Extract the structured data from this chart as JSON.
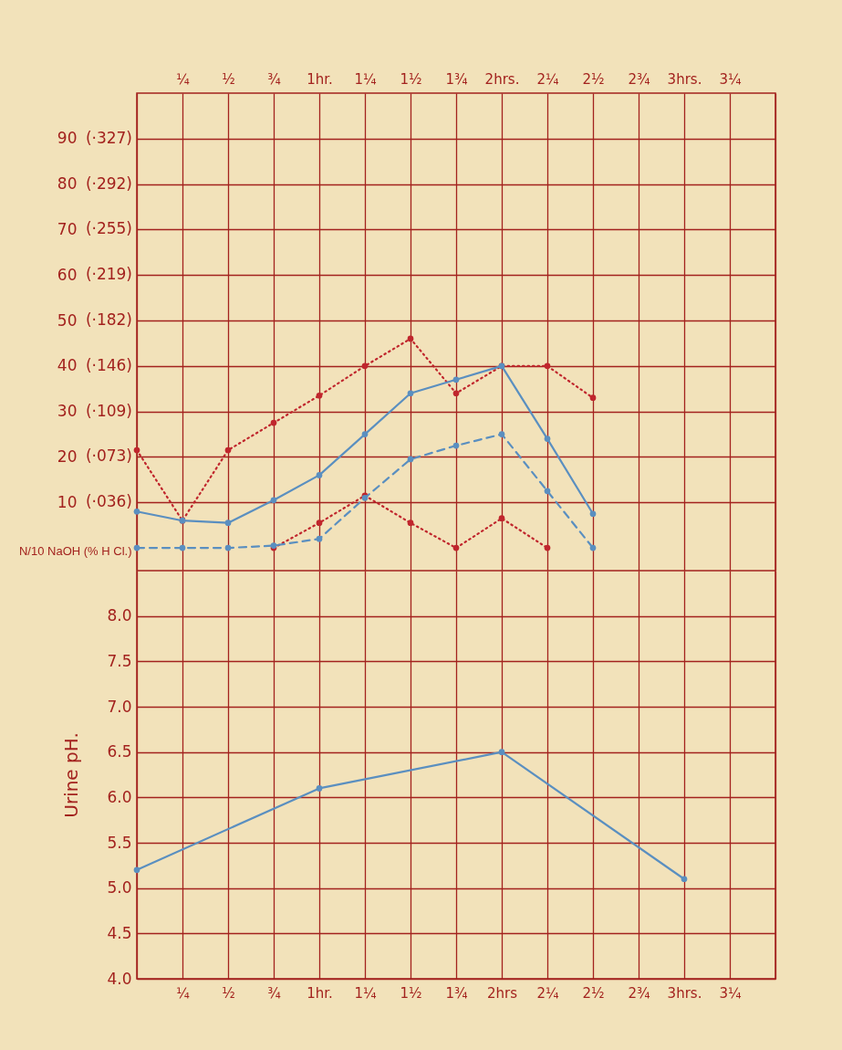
{
  "chart_data": [
    {
      "type": "line",
      "ylabel": "N/10 NaOH (% H Cl.)",
      "categories": [
        null,
        "¼",
        "½",
        "¾",
        "1hr.",
        "1¼",
        "1½",
        "1¾",
        "2hrs.",
        "2¼",
        "2½",
        "2¾",
        "3hrs.",
        "3¼",
        null
      ],
      "ylim": [
        -5,
        100
      ],
      "yticks": [
        10,
        20,
        30,
        40,
        50,
        60,
        70,
        80,
        90
      ],
      "annotations": [
        "(·036)",
        "(·073)",
        "(·109)",
        "(·146)",
        "(·182)",
        "(·219)",
        "(·255)",
        "(·292)",
        "(·327)"
      ],
      "grid": true,
      "series": [
        {
          "color": "#c0262d",
          "line_style": "dotted",
          "marker": "circle",
          "values": [
            21.5,
            6,
            21.5,
            27.5,
            33.5,
            40,
            46,
            34,
            40,
            40,
            33,
            null,
            null,
            null,
            null
          ]
        },
        {
          "color": "#c0262d",
          "line_style": "dotted",
          "marker": "circle",
          "values": [
            null,
            null,
            null,
            0,
            5.5,
            11.5,
            5.5,
            0,
            6.5,
            0,
            null,
            null,
            null,
            null,
            null
          ]
        },
        {
          "color": "#5a8fc0",
          "line_style": "solid",
          "marker": "circle",
          "values": [
            8,
            6,
            5.5,
            10.5,
            16,
            25,
            34,
            37,
            40,
            24,
            7.5,
            null,
            null,
            null,
            null
          ]
        },
        {
          "color": "#5a8fc0",
          "line_style": "dashed",
          "marker": "circle",
          "values": [
            0,
            0,
            0,
            0.5,
            2,
            11,
            19.5,
            22.5,
            25,
            12.5,
            0,
            null,
            null,
            null,
            null
          ]
        }
      ]
    },
    {
      "type": "line",
      "ylabel": "Urine pH.",
      "categories": [
        null,
        "¼",
        "½",
        "¾",
        "1hr.",
        "1¼",
        "1½",
        "1¾",
        "2hrs",
        "2¼",
        "2½",
        "2¾",
        "3hrs.",
        "3¼",
        null
      ],
      "ylim": [
        4,
        8.5
      ],
      "yticks": [
        {
          "value": 4,
          "label": "4.0"
        },
        {
          "value": 4.5,
          "label": "4.5"
        },
        {
          "value": 5,
          "label": "5.0"
        },
        {
          "value": 5.5,
          "label": "5.5"
        },
        {
          "value": 6,
          "label": "6.0"
        },
        {
          "value": 6.5,
          "label": "6.5"
        },
        {
          "value": 7,
          "label": "7.0"
        },
        {
          "value": 7.5,
          "label": "7.5"
        },
        {
          "value": 8,
          "label": "8.0"
        }
      ],
      "grid": true,
      "series": [
        {
          "color": "#5a8fc0",
          "line_style": "solid",
          "marker": "circle",
          "values": [
            5.2,
            null,
            null,
            null,
            6.1,
            null,
            null,
            null,
            6.5,
            null,
            null,
            null,
            5.1,
            null,
            null
          ]
        }
      ]
    }
  ]
}
